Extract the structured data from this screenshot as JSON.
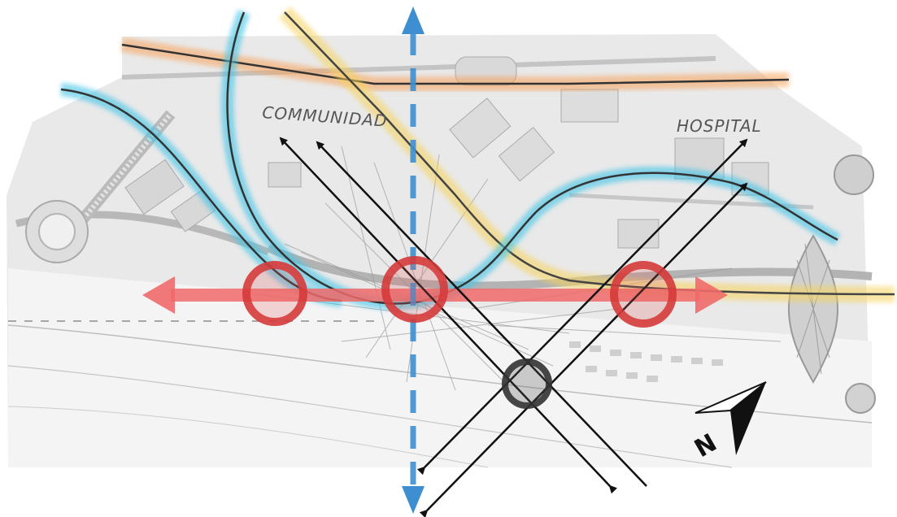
{
  "labels": {
    "community": "COMMUNIDAD",
    "hospital": "HOSPITAL"
  },
  "north_arrow": {
    "letter": "N"
  },
  "colors": {
    "orange_glow": "#f7a25a",
    "yellow_glow": "#f6d35c",
    "cyan_glow": "#3fc4e6",
    "red_axis": "#f06a6a",
    "red_ring": "#d63a3a",
    "blue_axis": "#3d8fd1",
    "dark_ring": "#333333",
    "ink": "#111111"
  }
}
